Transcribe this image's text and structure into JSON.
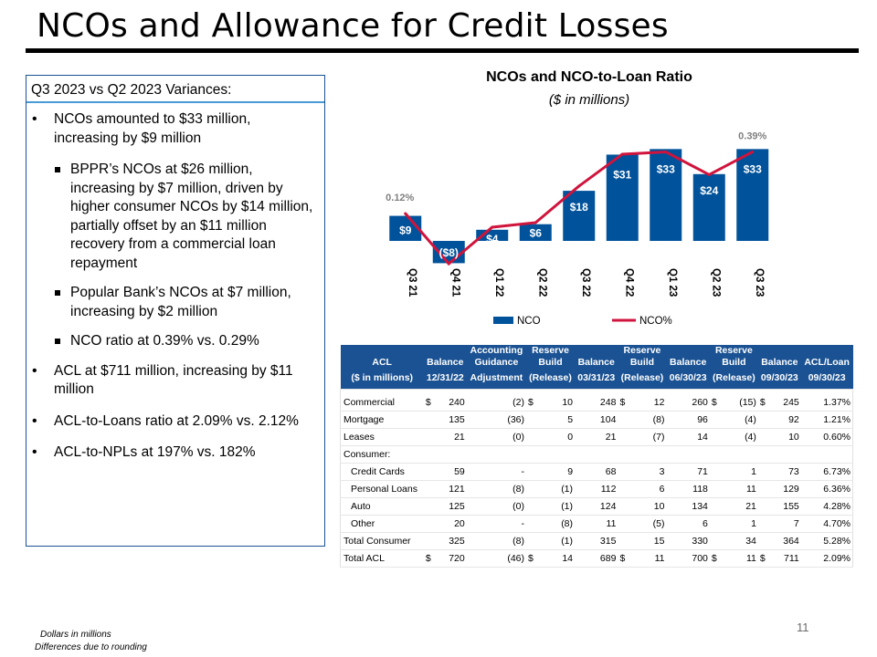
{
  "title": "NCOs and Allowance for Credit Losses",
  "panel": {
    "heading": "Q3 2023 vs Q2 2023 Variances:",
    "b1_ncos": "NCOs amounted to $33 million, increasing by $9 million",
    "b2_bppr": "BPPR’s NCOs at $26 million, increasing by $7 million, driven by higher consumer NCOs by $14 million, partially offset by an $11 million recovery from a commercial loan repayment",
    "b2_popular": "Popular Bank’s NCOs at $7 million, increasing by $2 million",
    "b2_ratio": "NCO ratio at 0.39% vs. 0.29%",
    "b1_acl": "ACL at $711 million, increasing by $11 million",
    "b1_acl_loans": "ACL-to-Loans ratio at 2.09% vs. 2.12%",
    "b1_acl_npls": "ACL-to-NPLs at 197% vs. 182%"
  },
  "chart_data": {
    "type": "bar",
    "title": "NCOs and NCO-to-Loan Ratio",
    "subtitle": "($ in millions)",
    "categories": [
      "Q3 21",
      "Q4 21",
      "Q1 22",
      "Q2 22",
      "Q3 22",
      "Q4 22",
      "Q1 23",
      "Q2 23",
      "Q3 23"
    ],
    "series": [
      {
        "name": "NCO",
        "type": "bar",
        "values": [
          9,
          -8,
          4,
          6,
          18,
          31,
          33,
          24,
          33
        ],
        "labels": [
          "$9",
          "($8)",
          "$4",
          "$6",
          "$18",
          "$31",
          "$33",
          "$24",
          "$33"
        ]
      },
      {
        "name": "NCO%",
        "type": "line",
        "values": [
          0.12,
          -0.1,
          0.06,
          0.08,
          0.24,
          0.38,
          0.39,
          0.29,
          0.39
        ]
      }
    ],
    "line_annotations": [
      {
        "index": 0,
        "label": "0.12%"
      },
      {
        "index": 8,
        "label": "0.39%"
      }
    ],
    "ylim": [
      -10,
      36
    ],
    "colors": {
      "bar": "#00529b",
      "line": "#d0143c",
      "annotation": "#7f7f7f"
    },
    "legend": [
      "NCO",
      "NCO%"
    ],
    "legend_position": "bottom"
  },
  "table": {
    "headers": [
      {
        "top": "",
        "bottom": "ACL"
      },
      {
        "top": "",
        "bottom": "Balance"
      },
      {
        "top": "Accounting",
        "bottom": "Guidance"
      },
      {
        "top": "Reserve",
        "bottom": "Build"
      },
      {
        "top": "",
        "bottom": "Balance"
      },
      {
        "top": "Reserve",
        "bottom": "Build"
      },
      {
        "top": "",
        "bottom": "Balance"
      },
      {
        "top": "Reserve",
        "bottom": "Build"
      },
      {
        "top": "",
        "bottom": "Balance"
      },
      {
        "top": "",
        "bottom": "ACL/Loan"
      }
    ],
    "subheaders": [
      "($ in millions)",
      "12/31/22",
      "Adjustment",
      "(Release)",
      "03/31/23",
      "(Release)",
      "06/30/23",
      "(Release)",
      "09/30/23",
      "09/30/23"
    ],
    "currency_symbol": "$",
    "rows": [
      {
        "label": "Commercial",
        "cur": true,
        "cells": [
          "240",
          "(2)",
          "10",
          "248",
          "12",
          "260",
          "(15)",
          "245",
          "1.37%"
        ]
      },
      {
        "label": "Mortgage",
        "cur": false,
        "cells": [
          "135",
          "(36)",
          "5",
          "104",
          "(8)",
          "96",
          "(4)",
          "92",
          "1.21%"
        ]
      },
      {
        "label": "Leases",
        "cur": false,
        "cells": [
          "21",
          "(0)",
          "0",
          "21",
          "(7)",
          "14",
          "(4)",
          "10",
          "0.60%"
        ]
      },
      {
        "label": "Consumer:",
        "cur": false,
        "cells": [
          "",
          "",
          "",
          "",
          "",
          "",
          "",
          "",
          ""
        ]
      },
      {
        "label": "Credit Cards",
        "indent": true,
        "cur": false,
        "cells": [
          "59",
          "-",
          "9",
          "68",
          "3",
          "71",
          "1",
          "73",
          "6.73%"
        ]
      },
      {
        "label": "Personal Loans",
        "indent": true,
        "cur": false,
        "cells": [
          "121",
          "(8)",
          "(1)",
          "112",
          "6",
          "118",
          "11",
          "129",
          "6.36%"
        ]
      },
      {
        "label": "Auto",
        "indent": true,
        "cur": false,
        "cells": [
          "125",
          "(0)",
          "(1)",
          "124",
          "10",
          "134",
          "21",
          "155",
          "4.28%"
        ]
      },
      {
        "label": "Other",
        "indent": true,
        "cur": false,
        "cells": [
          "20",
          "-",
          "(8)",
          "11",
          "(5)",
          "6",
          "1",
          "7",
          "4.70%"
        ]
      },
      {
        "label": "Total Consumer",
        "cur": false,
        "total": true,
        "cells": [
          "325",
          "(8)",
          "(1)",
          "315",
          "15",
          "330",
          "34",
          "364",
          "5.28%"
        ]
      },
      {
        "label": "Total ACL",
        "cur": true,
        "cells": [
          "720",
          "(46)",
          "14",
          "689",
          "11",
          "700",
          "11",
          "711",
          "2.09%"
        ]
      }
    ]
  },
  "page_number": "11",
  "footnotes": [
    "Dollars in millions",
    "Differences due to rounding"
  ]
}
